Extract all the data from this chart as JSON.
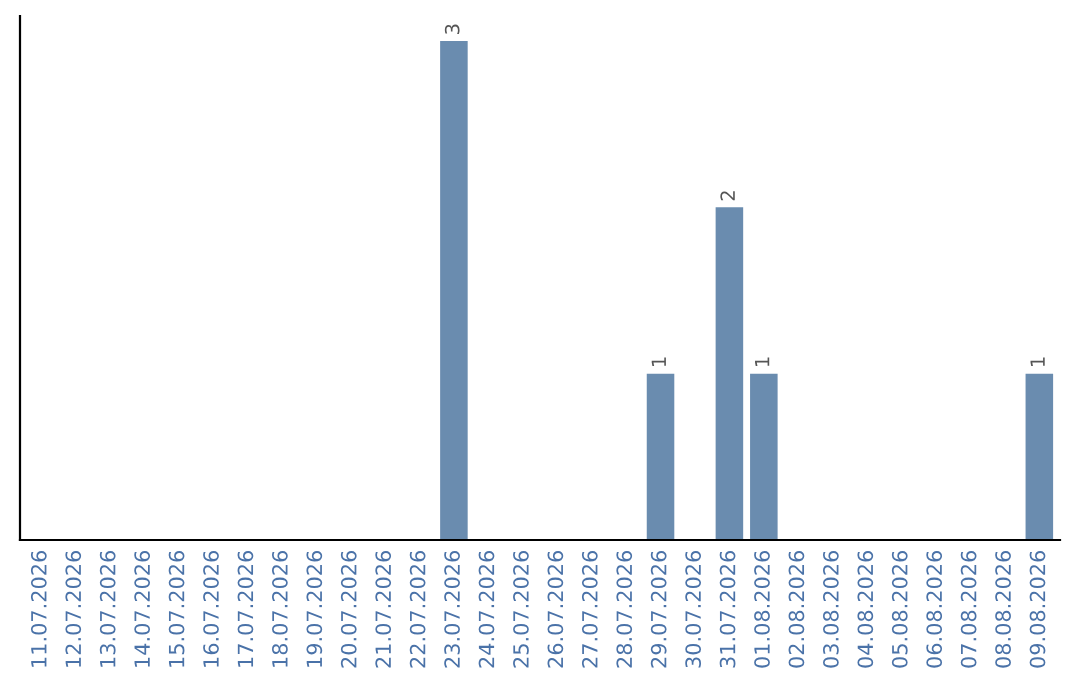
{
  "chart_data": {
    "type": "bar",
    "categories": [
      "11.07.2026",
      "12.07.2026",
      "13.07.2026",
      "14.07.2026",
      "15.07.2026",
      "16.07.2026",
      "17.07.2026",
      "18.07.2026",
      "19.07.2026",
      "20.07.2026",
      "21.07.2026",
      "22.07.2026",
      "23.07.2026",
      "24.07.2026",
      "25.07.2026",
      "26.07.2026",
      "27.07.2026",
      "28.07.2026",
      "29.07.2026",
      "30.07.2026",
      "31.07.2026",
      "01.08.2026",
      "02.08.2026",
      "03.08.2026",
      "04.08.2026",
      "05.08.2026",
      "06.08.2026",
      "07.08.2026",
      "08.08.2026",
      "09.08.2026"
    ],
    "values": [
      null,
      null,
      null,
      null,
      null,
      null,
      null,
      null,
      null,
      null,
      null,
      null,
      3,
      null,
      null,
      null,
      null,
      null,
      1,
      null,
      2,
      1,
      null,
      null,
      null,
      null,
      null,
      null,
      null,
      1
    ],
    "data_labels": true,
    "color": "#6a8caf",
    "grid": false,
    "legend": false,
    "tick_labels": "x"
  }
}
